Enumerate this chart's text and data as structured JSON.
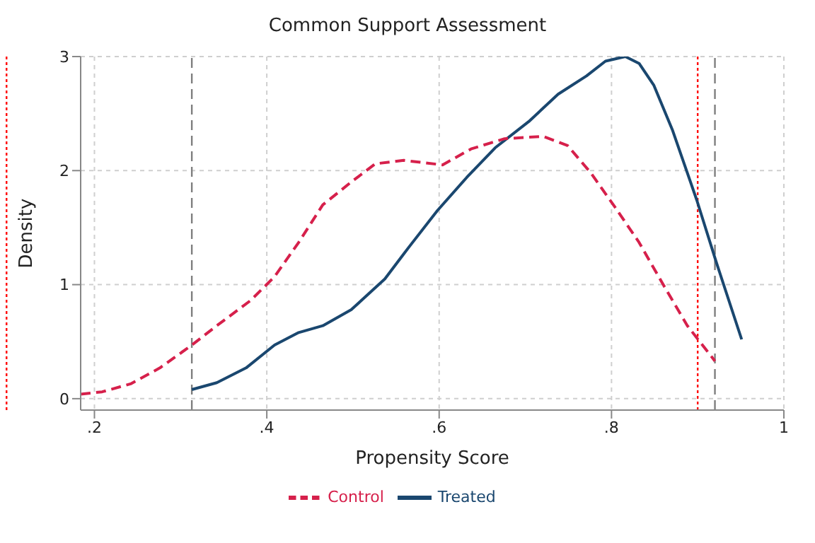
{
  "chart_data": {
    "type": "line",
    "title": "Common Support Assessment",
    "xlabel": "Propensity Score",
    "ylabel": "Density",
    "xlim": [
      0.184,
      1
    ],
    "ylim": [
      -0.1,
      3
    ],
    "xticks": [
      {
        "value": 0.2,
        "label": ".2"
      },
      {
        "value": 0.4,
        "label": ".4"
      },
      {
        "value": 0.6,
        "label": ".6"
      },
      {
        "value": 0.8,
        "label": ".8"
      },
      1
    ],
    "yticks": [
      0,
      1,
      2,
      3
    ],
    "grid": true,
    "legend": "bottom",
    "marker": "none",
    "ref_lines": [
      {
        "axis": "x",
        "value": 0.098,
        "color": "#ff0000",
        "line_style": "dotted"
      },
      {
        "axis": "x",
        "value": 0.9,
        "color": "#ff0000",
        "line_style": "dotted"
      },
      {
        "axis": "x",
        "value": 0.313,
        "color": "#7f7f7f",
        "line_style": "dashed"
      },
      {
        "axis": "x",
        "value": 0.92,
        "color": "#7f7f7f",
        "line_style": "dashed"
      }
    ],
    "series": [
      {
        "name": "Treated",
        "color": "#1a476f",
        "line_style": "solid",
        "x": [
          0.313,
          0.342,
          0.376,
          0.409,
          0.437,
          0.465,
          0.498,
          0.537,
          0.559,
          0.565,
          0.598,
          0.632,
          0.665,
          0.704,
          0.738,
          0.771,
          0.793,
          0.816,
          0.832,
          0.849,
          0.871,
          0.899,
          0.921,
          0.951
        ],
        "values": [
          0.08,
          0.14,
          0.27,
          0.47,
          0.58,
          0.64,
          0.78,
          1.05,
          1.27,
          1.33,
          1.65,
          1.94,
          2.2,
          2.43,
          2.67,
          2.83,
          2.96,
          3.0,
          2.94,
          2.75,
          2.35,
          1.74,
          1.21,
          0.52
        ]
      },
      {
        "name": "Control",
        "color": "#d6204b",
        "line_style": "dashed",
        "x": [
          0.184,
          0.209,
          0.242,
          0.276,
          0.313,
          0.342,
          0.381,
          0.409,
          0.437,
          0.465,
          0.498,
          0.526,
          0.559,
          0.604,
          0.637,
          0.676,
          0.721,
          0.749,
          0.776,
          0.804,
          0.832,
          0.86,
          0.888,
          0.92
        ],
        "values": [
          0.04,
          0.06,
          0.13,
          0.27,
          0.47,
          0.64,
          0.86,
          1.07,
          1.37,
          1.7,
          1.9,
          2.06,
          2.09,
          2.05,
          2.19,
          2.28,
          2.3,
          2.22,
          1.98,
          1.68,
          1.37,
          1.0,
          0.64,
          0.33
        ]
      }
    ]
  }
}
